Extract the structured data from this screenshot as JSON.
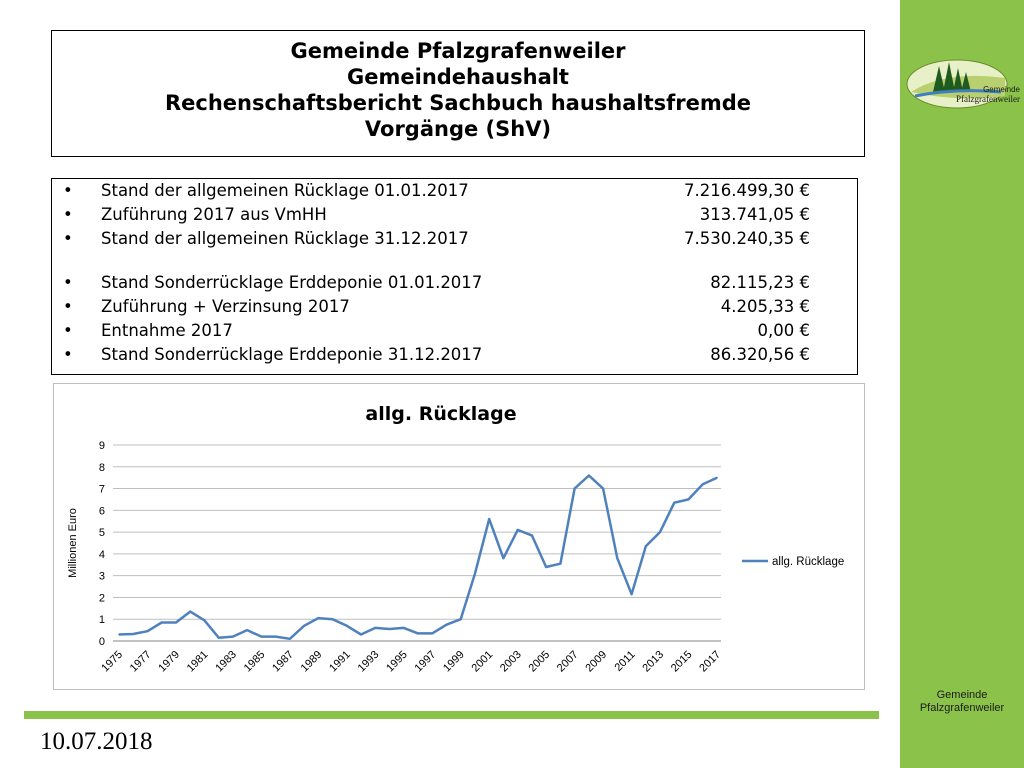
{
  "header": {
    "title_lines": [
      "Gemeinde Pfalzgrafenweiler",
      "Gemeindehaushalt",
      "Rechenschaftsbericht Sachbuch haushaltsfremde",
      "Vorgänge (ShV)"
    ]
  },
  "items": [
    {
      "bullet": "•",
      "label": "Stand der allgemeinen Rücklage 01.01.2017",
      "value": "7.216.499,30 €"
    },
    {
      "bullet": "•",
      "label": "Zuführung 2017  aus VmHH",
      "value": "313.741,05 €"
    },
    {
      "bullet": "•",
      "label": "Stand der allgemeinen Rücklage 31.12.2017",
      "value": "7.530.240,35 €"
    },
    {
      "bullet": "•",
      "label": "Stand Sonderrücklage Erddeponie 01.01.2017",
      "value": "82.115,23 €"
    },
    {
      "bullet": "•",
      "label": "Zuführung + Verzinsung 2017",
      "value": "4.205,33 €"
    },
    {
      "bullet": "•",
      "label": "Entnahme 2017",
      "value": "0,00 € "
    },
    {
      "bullet": "•",
      "label": "Stand Sonderrücklage Erddeponie 31.12.2017",
      "value": "86.320,56 €"
    }
  ],
  "chart_data": {
    "type": "line",
    "title": "allg. Rücklage",
    "xlabel": "",
    "ylabel": "Millionen Euro",
    "ylim": [
      0,
      9
    ],
    "yticks": [
      "0",
      "1",
      "2",
      "3",
      "4",
      "5",
      "6",
      "7",
      "8",
      "9"
    ],
    "x": [
      1975,
      1976,
      1977,
      1978,
      1979,
      1980,
      1981,
      1982,
      1983,
      1984,
      1985,
      1986,
      1987,
      1988,
      1989,
      1990,
      1991,
      1992,
      1993,
      1994,
      1995,
      1996,
      1997,
      1998,
      1999,
      2000,
      2001,
      2002,
      2003,
      2004,
      2005,
      2006,
      2007,
      2008,
      2009,
      2010,
      2011,
      2012,
      2013,
      2014,
      2015,
      2016,
      2017
    ],
    "xtick_labels": [
      "1975",
      "1977",
      "1979",
      "1981",
      "1983",
      "1985",
      "1987",
      "1989",
      "1991",
      "1993",
      "1995",
      "1997",
      "1999",
      "2001",
      "2003",
      "2005",
      "2007",
      "2009",
      "2011",
      "2013",
      "2015",
      "2017"
    ],
    "series": [
      {
        "name": "allg. Rücklage",
        "color": "#4f81bd",
        "values": [
          0.3,
          0.32,
          0.45,
          0.85,
          0.85,
          1.35,
          0.95,
          0.15,
          0.2,
          0.5,
          0.2,
          0.2,
          0.1,
          0.7,
          1.05,
          1.0,
          0.7,
          0.3,
          0.6,
          0.55,
          0.6,
          0.35,
          0.35,
          0.75,
          1.0,
          3.1,
          5.6,
          3.8,
          5.1,
          4.85,
          3.4,
          3.55,
          7.0,
          7.6,
          7.0,
          3.8,
          2.15,
          4.35,
          5.0,
          6.35,
          6.5,
          7.2,
          7.5
        ]
      }
    ],
    "legend": "right",
    "grid": true
  },
  "date": "10.07.2018",
  "sidebar": {
    "logo_text_small": "Gemeinde",
    "logo_text_big": "Pfalzgrafenweiler",
    "footer_line1": "Gemeinde",
    "footer_line2": "Pfalzgrafenweiler",
    "colors": {
      "green": "#8bc34a",
      "line": "#4f81bd"
    }
  }
}
